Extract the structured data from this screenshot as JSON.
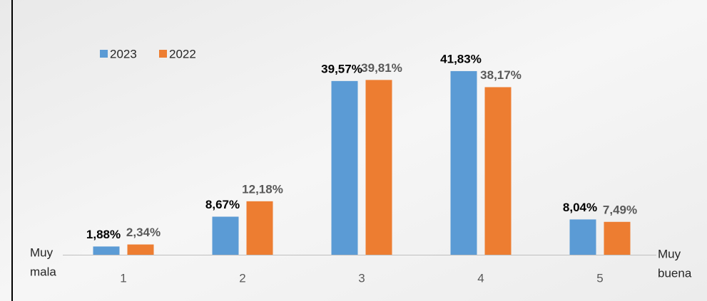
{
  "chart_data": {
    "type": "bar",
    "categories": [
      "1",
      "2",
      "3",
      "4",
      "5"
    ],
    "series": [
      {
        "name": "2023",
        "color": "#5b9bd5",
        "values": [
          1.88,
          8.67,
          39.57,
          41.83,
          8.04
        ],
        "value_labels": [
          "1,88%",
          "8,67%",
          "39,57%",
          "41,83%",
          "8,04%"
        ]
      },
      {
        "name": "2022",
        "color": "#ed7d31",
        "values": [
          2.34,
          12.18,
          39.81,
          38.17,
          7.49
        ],
        "value_labels": [
          "2,34%",
          "12,18%",
          "39,81%",
          "38,17%",
          "7,49%"
        ]
      }
    ],
    "axis_start_label": [
      "Muy",
      "mala"
    ],
    "axis_end_label": [
      "Muy",
      "buena"
    ],
    "legend": "top-left"
  }
}
